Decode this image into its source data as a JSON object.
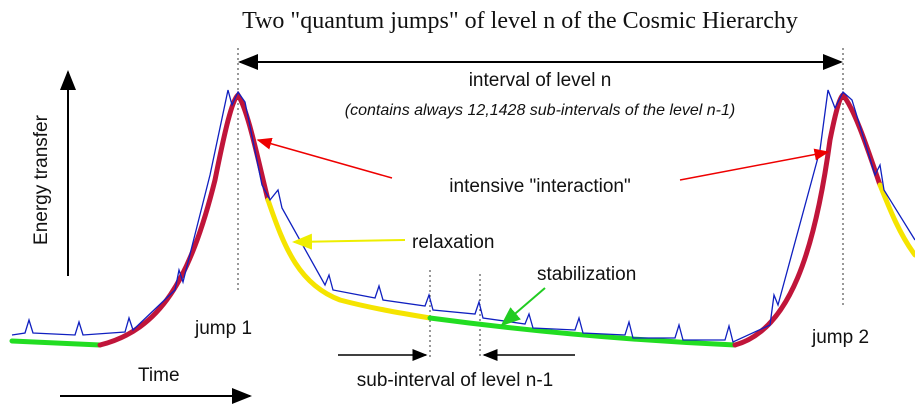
{
  "title": "Two  \"quantum jumps\" of level n of the Cosmic Hierarchy",
  "labels": {
    "interval": "interval of level n",
    "interval_note": "(contains always 12,1428 sub-intervals of the level n-1)",
    "interaction": "intensive \"interaction\"",
    "relaxation": "relaxation",
    "stabilization": "stabilization",
    "jump1": "jump 1",
    "jump2": "jump 2",
    "sub_interval": "sub-interval of level n-1",
    "time": "Time",
    "energy": "Energy transfer"
  }
}
